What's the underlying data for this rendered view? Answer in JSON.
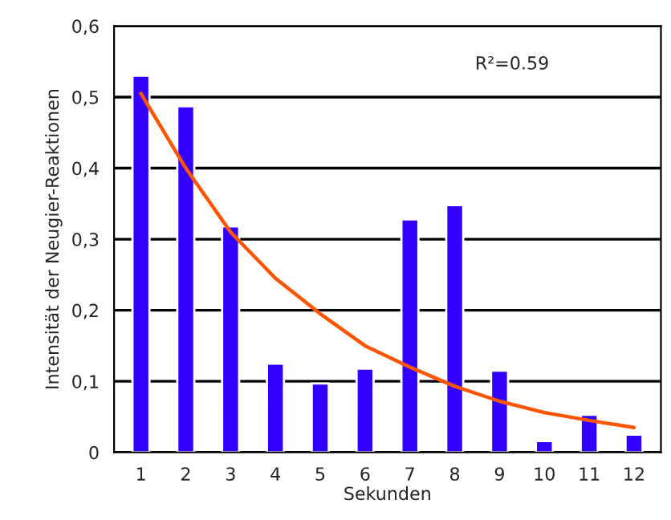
{
  "chart_data": {
    "type": "bar",
    "xlabel": "Sekunden",
    "ylabel": "Intensität der Neugier-Reaktionen",
    "categories": [
      "1",
      "2",
      "3",
      "4",
      "5",
      "6",
      "7",
      "8",
      "9",
      "10",
      "11",
      "12"
    ],
    "series": [
      {
        "color": "#3300ff",
        "values": [
          0.53,
          0.487,
          0.318,
          0.125,
          0.097,
          0.118,
          0.328,
          0.348,
          0.115,
          0.016,
          0.053,
          0.025
        ]
      },
      {
        "type": "line",
        "color": "#ff5500",
        "x": [
          "1",
          "2",
          "3",
          "4",
          "5",
          "6",
          "7",
          "8",
          "9",
          "10",
          "11",
          "12"
        ],
        "values": [
          0.505,
          0.4,
          0.31,
          0.245,
          0.195,
          0.15,
          0.12,
          0.093,
          0.072,
          0.056,
          0.045,
          0.035
        ]
      }
    ],
    "ylim": [
      0,
      0.6
    ],
    "yticks": [
      {
        "value": 0,
        "label": "0"
      },
      {
        "value": 0.1,
        "label": "0,1"
      },
      {
        "value": 0.2,
        "label": "0,2"
      },
      {
        "value": 0.3,
        "label": "0,3"
      },
      {
        "value": 0.4,
        "label": "0,4"
      },
      {
        "value": 0.5,
        "label": "0,5"
      },
      {
        "value": 0.6,
        "label": "0,6"
      }
    ],
    "grid": "y",
    "annotations": [
      "R²=0.59"
    ]
  }
}
